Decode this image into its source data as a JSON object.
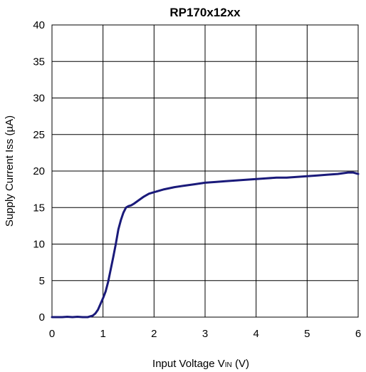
{
  "chart_data": {
    "type": "line",
    "title": "RP170x12xx",
    "xlabel": "Input Voltage VIN (V)",
    "xlabel_main": "Input Voltage V",
    "xlabel_sub": "IN",
    "xlabel_unit": " (V)",
    "ylabel": "Supply Current Iss (µA)",
    "xlim": [
      0,
      6
    ],
    "ylim": [
      0,
      40
    ],
    "xticks": [
      0,
      1,
      2,
      3,
      4,
      5,
      6
    ],
    "yticks": [
      0,
      5,
      10,
      15,
      20,
      25,
      30,
      35,
      40
    ],
    "grid": true,
    "line_color": "#1a1a7a",
    "series": [
      {
        "x": [
          0.0,
          0.1,
          0.2,
          0.3,
          0.4,
          0.5,
          0.6,
          0.7,
          0.8,
          0.85,
          0.9,
          0.95,
          1.0,
          1.05,
          1.1,
          1.15,
          1.2,
          1.25,
          1.3,
          1.35,
          1.4,
          1.45,
          1.5,
          1.55,
          1.6,
          1.7,
          1.8,
          1.9,
          2.0,
          2.2,
          2.4,
          2.6,
          2.8,
          3.0,
          3.2,
          3.4,
          3.6,
          3.8,
          4.0,
          4.2,
          4.4,
          4.6,
          4.8,
          5.0,
          5.2,
          5.4,
          5.6,
          5.8,
          5.9,
          6.0
        ],
        "values": [
          0.0,
          0.0,
          0.0,
          0.05,
          0.0,
          0.05,
          0.0,
          0.0,
          0.2,
          0.5,
          1.0,
          1.8,
          2.6,
          3.5,
          4.8,
          6.5,
          8.2,
          10.0,
          12.0,
          13.3,
          14.3,
          15.0,
          15.2,
          15.3,
          15.5,
          16.0,
          16.5,
          16.9,
          17.1,
          17.5,
          17.8,
          18.0,
          18.2,
          18.4,
          18.5,
          18.6,
          18.7,
          18.8,
          18.9,
          19.0,
          19.1,
          19.1,
          19.2,
          19.3,
          19.4,
          19.5,
          19.6,
          19.8,
          19.8,
          19.6
        ]
      }
    ]
  }
}
